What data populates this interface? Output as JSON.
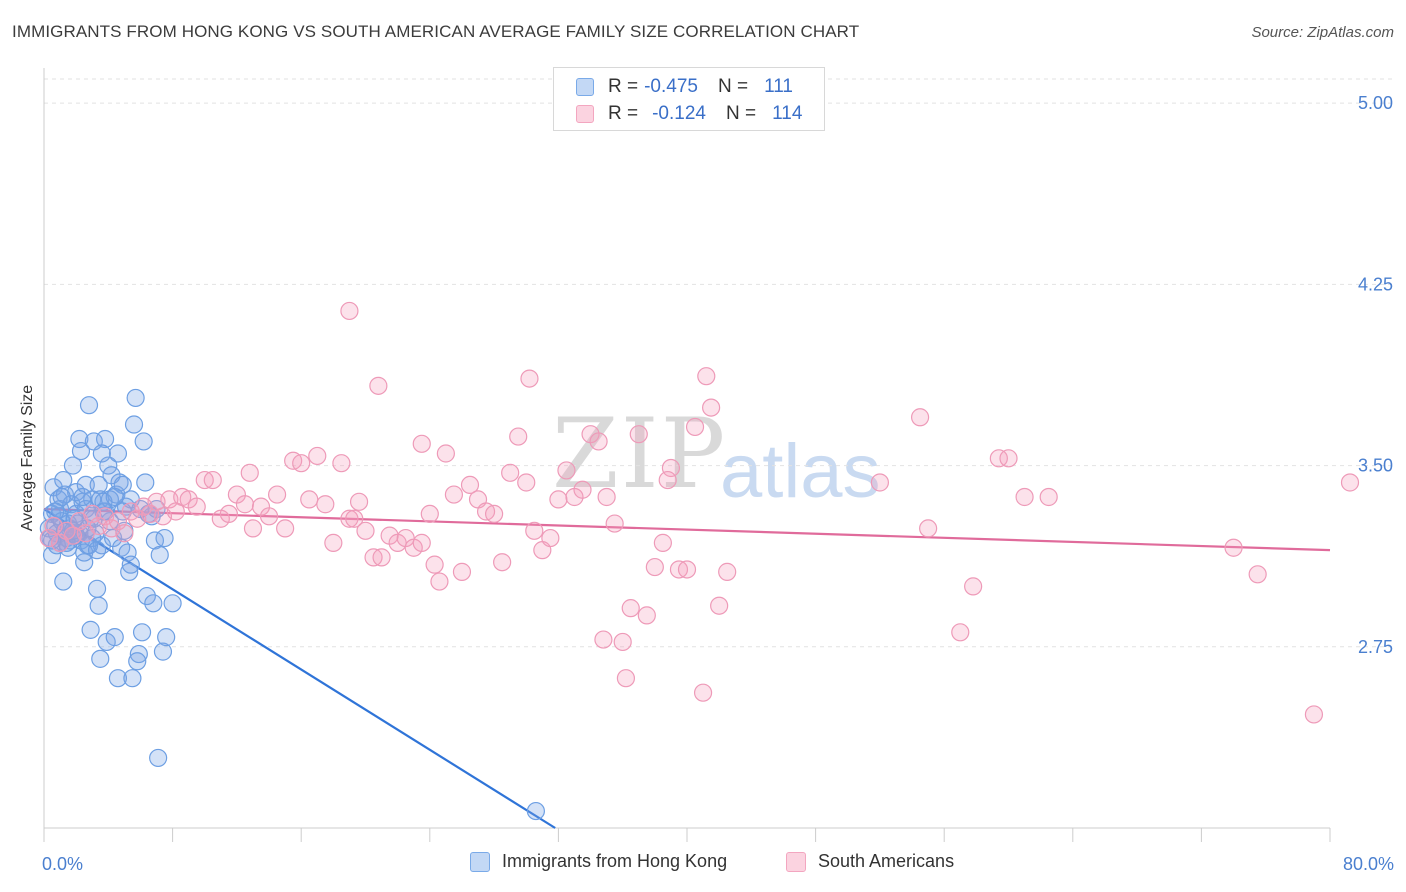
{
  "title": "IMMIGRANTS FROM HONG KONG VS SOUTH AMERICAN AVERAGE FAMILY SIZE CORRELATION CHART",
  "source": "Source: ZipAtlas.com",
  "watermark": {
    "part1": "ZIP",
    "part2": "atlas"
  },
  "legend": {
    "r_label": "R =",
    "n_label": "N =",
    "series1": {
      "r": "-0.475",
      "n": "111",
      "color": "#7aaae8"
    },
    "series2": {
      "r": "-0.124",
      "n": "114",
      "color": "#f3a6c0"
    }
  },
  "bottom_legend": {
    "series1": "Immigrants from Hong Kong",
    "series2": "South Americans"
  },
  "chart_data": {
    "type": "scatter",
    "ylabel": "Average Family Size",
    "xlim": [
      0,
      80
    ],
    "ylim": [
      2.0,
      5.1
    ],
    "x_tick_labels": [
      "0.0%",
      "80.0%"
    ],
    "y_ticks": [
      2.75,
      3.5,
      4.25,
      5.0
    ],
    "y_tick_labels": [
      "2.75",
      "3.50",
      "4.25",
      "5.00"
    ],
    "grid": true,
    "series": [
      {
        "name": "Immigrants from Hong Kong",
        "color": "#5b93e0",
        "trend": {
          "x": [
            0,
            31.8
          ],
          "y": [
            3.32,
            2.0
          ],
          "color": "#2f74d8"
        },
        "points": [
          [
            0.3,
            3.24
          ],
          [
            0.4,
            3.2
          ],
          [
            0.5,
            3.3
          ],
          [
            0.5,
            3.13
          ],
          [
            0.6,
            3.41
          ],
          [
            0.7,
            3.25
          ],
          [
            0.8,
            3.22
          ],
          [
            0.9,
            3.36
          ],
          [
            1.0,
            3.32
          ],
          [
            1.0,
            3.18
          ],
          [
            1.1,
            3.27
          ],
          [
            1.2,
            3.44
          ],
          [
            1.2,
            3.02
          ],
          [
            1.3,
            3.38
          ],
          [
            1.4,
            3.2
          ],
          [
            1.5,
            3.16
          ],
          [
            1.6,
            3.24
          ],
          [
            1.7,
            3.34
          ],
          [
            1.8,
            3.5
          ],
          [
            1.9,
            3.22
          ],
          [
            2.0,
            3.3
          ],
          [
            2.0,
            3.39
          ],
          [
            2.1,
            3.26
          ],
          [
            2.2,
            3.61
          ],
          [
            2.3,
            3.56
          ],
          [
            2.3,
            3.19
          ],
          [
            2.4,
            3.35
          ],
          [
            2.5,
            3.1
          ],
          [
            2.6,
            3.42
          ],
          [
            2.7,
            3.17
          ],
          [
            2.8,
            3.75
          ],
          [
            2.9,
            3.28
          ],
          [
            3.0,
            3.36
          ],
          [
            3.1,
            3.6
          ],
          [
            3.2,
            3.22
          ],
          [
            3.3,
            2.99
          ],
          [
            3.4,
            3.42
          ],
          [
            3.5,
            3.36
          ],
          [
            3.6,
            3.17
          ],
          [
            3.7,
            3.31
          ],
          [
            3.8,
            3.61
          ],
          [
            3.9,
            2.77
          ],
          [
            4.0,
            3.5
          ],
          [
            4.1,
            3.27
          ],
          [
            4.2,
            3.46
          ],
          [
            4.3,
            3.2
          ],
          [
            4.5,
            3.38
          ],
          [
            4.6,
            3.55
          ],
          [
            4.7,
            3.43
          ],
          [
            4.8,
            3.16
          ],
          [
            5.0,
            3.23
          ],
          [
            5.1,
            3.33
          ],
          [
            5.2,
            3.14
          ],
          [
            5.3,
            3.06
          ],
          [
            5.4,
            3.36
          ],
          [
            5.6,
            3.67
          ],
          [
            5.7,
            3.78
          ],
          [
            5.9,
            2.72
          ],
          [
            6.0,
            3.32
          ],
          [
            6.2,
            3.6
          ],
          [
            6.3,
            3.43
          ],
          [
            6.5,
            3.3
          ],
          [
            6.7,
            3.29
          ],
          [
            6.9,
            3.19
          ],
          [
            7.0,
            3.32
          ],
          [
            7.2,
            3.13
          ],
          [
            7.4,
            2.73
          ],
          [
            7.5,
            3.2
          ],
          [
            7.6,
            2.79
          ],
          [
            5.4,
            3.09
          ],
          [
            6.1,
            2.81
          ],
          [
            6.4,
            2.96
          ],
          [
            4.4,
            2.79
          ],
          [
            5.8,
            2.69
          ],
          [
            3.5,
            2.7
          ],
          [
            2.9,
            2.82
          ],
          [
            3.4,
            2.92
          ],
          [
            4.6,
            2.62
          ],
          [
            2.6,
            3.32
          ],
          [
            1.5,
            3.26
          ],
          [
            2.2,
            3.22
          ],
          [
            0.9,
            3.29
          ],
          [
            1.6,
            3.19
          ],
          [
            2.7,
            3.24
          ],
          [
            3.0,
            3.2
          ],
          [
            1.3,
            3.23
          ],
          [
            2.4,
            3.37
          ],
          [
            3.8,
            3.31
          ],
          [
            1.1,
            3.37
          ],
          [
            0.7,
            3.31
          ],
          [
            0.8,
            3.17
          ],
          [
            1.9,
            3.28
          ],
          [
            2.5,
            3.14
          ],
          [
            3.6,
            3.55
          ],
          [
            4.9,
            3.31
          ],
          [
            4.1,
            3.36
          ],
          [
            6.8,
            2.93
          ],
          [
            7.1,
            2.29
          ],
          [
            30.6,
            2.07
          ],
          [
            8.0,
            2.93
          ],
          [
            4.9,
            3.42
          ],
          [
            1.4,
            3.18
          ],
          [
            2.0,
            3.21
          ],
          [
            3.1,
            3.28
          ],
          [
            3.7,
            3.35
          ],
          [
            1.8,
            3.23
          ],
          [
            2.8,
            3.17
          ],
          [
            5.5,
            2.62
          ],
          [
            0.5,
            3.19
          ],
          [
            4.4,
            3.37
          ],
          [
            3.3,
            3.15
          ]
        ]
      },
      {
        "name": "South Americans",
        "color": "#f08ab0",
        "trend": {
          "x": [
            0,
            80
          ],
          "y": [
            3.32,
            3.15
          ],
          "color": "#e06b9b"
        },
        "points": [
          [
            0.3,
            3.2
          ],
          [
            0.6,
            3.25
          ],
          [
            1.0,
            3.18
          ],
          [
            1.4,
            3.23
          ],
          [
            1.8,
            3.21
          ],
          [
            2.2,
            3.27
          ],
          [
            2.6,
            3.22
          ],
          [
            3.0,
            3.3
          ],
          [
            3.4,
            3.25
          ],
          [
            3.8,
            3.29
          ],
          [
            4.2,
            3.24
          ],
          [
            4.6,
            3.27
          ],
          [
            5.0,
            3.22
          ],
          [
            5.4,
            3.31
          ],
          [
            5.8,
            3.28
          ],
          [
            6.2,
            3.33
          ],
          [
            6.6,
            3.3
          ],
          [
            7.0,
            3.35
          ],
          [
            7.4,
            3.29
          ],
          [
            7.8,
            3.36
          ],
          [
            8.2,
            3.31
          ],
          [
            8.6,
            3.37
          ],
          [
            9.0,
            3.36
          ],
          [
            9.5,
            3.33
          ],
          [
            10.0,
            3.44
          ],
          [
            10.5,
            3.44
          ],
          [
            11.0,
            3.28
          ],
          [
            11.5,
            3.3
          ],
          [
            12.0,
            3.38
          ],
          [
            12.5,
            3.34
          ],
          [
            13.0,
            3.24
          ],
          [
            13.5,
            3.33
          ],
          [
            14.0,
            3.29
          ],
          [
            14.5,
            3.38
          ],
          [
            15.0,
            3.24
          ],
          [
            15.5,
            3.52
          ],
          [
            16.0,
            3.51
          ],
          [
            16.5,
            3.36
          ],
          [
            17.0,
            3.54
          ],
          [
            17.5,
            3.34
          ],
          [
            18.0,
            3.18
          ],
          [
            18.5,
            3.51
          ],
          [
            19.0,
            3.28
          ],
          [
            19.3,
            3.28
          ],
          [
            19.6,
            3.35
          ],
          [
            20.0,
            3.23
          ],
          [
            20.5,
            3.12
          ],
          [
            21.0,
            3.12
          ],
          [
            21.5,
            3.21
          ],
          [
            22.0,
            3.18
          ],
          [
            22.5,
            3.2
          ],
          [
            23.0,
            3.16
          ],
          [
            23.5,
            3.18
          ],
          [
            24.0,
            3.3
          ],
          [
            24.3,
            3.09
          ],
          [
            24.6,
            3.02
          ],
          [
            25.0,
            3.55
          ],
          [
            25.5,
            3.38
          ],
          [
            26.0,
            3.06
          ],
          [
            26.5,
            3.42
          ],
          [
            27.0,
            3.36
          ],
          [
            27.5,
            3.31
          ],
          [
            28.0,
            3.3
          ],
          [
            28.5,
            3.1
          ],
          [
            29.0,
            3.47
          ],
          [
            29.5,
            3.62
          ],
          [
            30.0,
            3.43
          ],
          [
            30.5,
            3.23
          ],
          [
            31.0,
            3.15
          ],
          [
            31.5,
            3.2
          ],
          [
            32.0,
            3.36
          ],
          [
            32.5,
            3.48
          ],
          [
            33.0,
            3.37
          ],
          [
            33.5,
            3.4
          ],
          [
            34.0,
            3.63
          ],
          [
            34.5,
            3.6
          ],
          [
            35.0,
            3.37
          ],
          [
            35.5,
            3.26
          ],
          [
            36.0,
            2.77
          ],
          [
            36.5,
            2.91
          ],
          [
            37.0,
            3.63
          ],
          [
            37.5,
            2.88
          ],
          [
            38.0,
            3.08
          ],
          [
            38.5,
            3.18
          ],
          [
            39.0,
            3.49
          ],
          [
            39.5,
            3.07
          ],
          [
            40.0,
            3.07
          ],
          [
            40.5,
            3.66
          ],
          [
            41.0,
            2.56
          ],
          [
            41.5,
            3.74
          ],
          [
            42.0,
            2.92
          ],
          [
            42.5,
            3.06
          ],
          [
            36.2,
            2.62
          ],
          [
            34.8,
            2.78
          ],
          [
            19.0,
            4.14
          ],
          [
            20.8,
            3.83
          ],
          [
            23.5,
            3.59
          ],
          [
            30.2,
            3.86
          ],
          [
            38.8,
            3.44
          ],
          [
            41.2,
            3.87
          ],
          [
            52.0,
            3.43
          ],
          [
            54.5,
            3.7
          ],
          [
            55.0,
            3.24
          ],
          [
            57.0,
            2.81
          ],
          [
            57.8,
            3.0
          ],
          [
            59.4,
            3.53
          ],
          [
            60.0,
            3.53
          ],
          [
            61.0,
            3.37
          ],
          [
            62.5,
            3.37
          ],
          [
            74.0,
            3.16
          ],
          [
            75.5,
            3.05
          ],
          [
            79.0,
            2.47
          ],
          [
            82.0,
            3.43
          ],
          [
            12.8,
            3.47
          ]
        ]
      }
    ]
  }
}
